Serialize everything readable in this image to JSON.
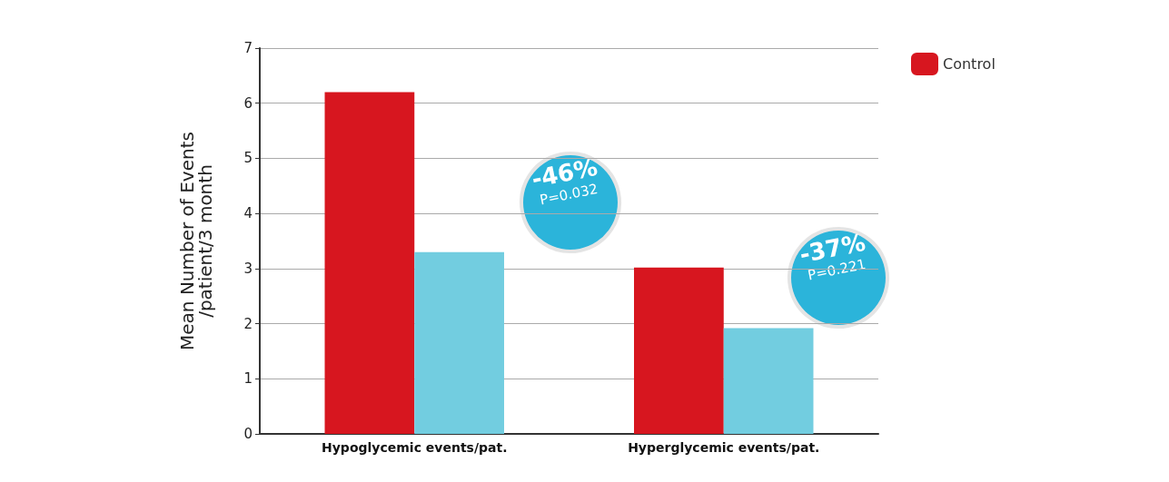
{
  "chart_data": {
    "type": "bar",
    "ylabel": "Mean Number of Events\n/patient/3 month",
    "categories": [
      "Hypoglycemic events/pat.",
      "Hyperglycemic events/pat."
    ],
    "series": [
      {
        "name": "Control",
        "color": "#d7161f",
        "values": [
          6.2,
          3.02
        ]
      },
      {
        "color": "#72cde0",
        "values": [
          3.3,
          1.92
        ]
      }
    ],
    "ylim": [
      0,
      7
    ],
    "yticks": [
      0,
      1,
      2,
      3,
      4,
      5,
      6,
      7
    ],
    "grid": "y",
    "legend": "top right",
    "annotations": [
      "-46%",
      "P=0.032",
      "-37%",
      "P=0.221"
    ]
  }
}
